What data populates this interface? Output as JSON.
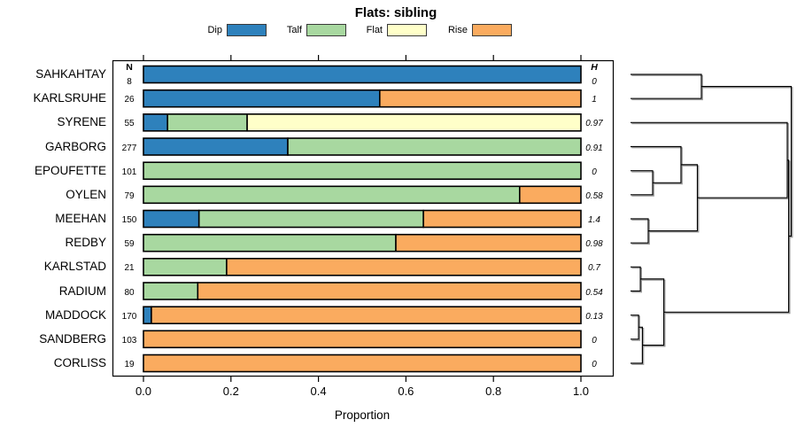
{
  "title": "Flats: sibling",
  "legend": {
    "items": [
      {
        "label": "Dip",
        "color": "#2E81BC"
      },
      {
        "label": "Talf",
        "color": "#A8D8A0"
      },
      {
        "label": "Flat",
        "color": "#FFFFC9"
      },
      {
        "label": "Rise",
        "color": "#FAAB5F"
      }
    ]
  },
  "columns": {
    "n_header": "N",
    "h_header": "H"
  },
  "xlabel": "Proportion",
  "chart_data": {
    "type": "bar",
    "orientation": "horizontal",
    "stacked": true,
    "title": "Flats: sibling",
    "xlabel": "Proportion",
    "xlim": [
      0,
      1
    ],
    "grid": false,
    "legend_position": "top",
    "x_tick_labels": [
      "0.0",
      "0.2",
      "0.4",
      "0.6",
      "0.8",
      "1.0"
    ],
    "categories": [
      "SAHKAHTAY",
      "KARLSRUHE",
      "SYRENE",
      "GARBORG",
      "EPOUFETTE",
      "OYLEN",
      "MEEHAN",
      "REDBY",
      "KARLSTAD",
      "RADIUM",
      "MADDOCK",
      "SANDBERG",
      "CORLISS"
    ],
    "n_values": [
      8,
      26,
      55,
      277,
      101,
      79,
      150,
      59,
      21,
      80,
      170,
      103,
      19
    ],
    "h_values": [
      "0",
      "1",
      "0.97",
      "0.91",
      "0",
      "0.58",
      "1.4",
      "0.98",
      "0.7",
      "0.54",
      "0.13",
      "0",
      "0"
    ],
    "series": [
      {
        "name": "Dip",
        "color": "#2E81BC",
        "values": [
          1,
          0.54,
          0.055,
          0.33,
          0,
          0,
          0.127,
          0,
          0,
          0,
          0.018,
          0,
          0
        ]
      },
      {
        "name": "Talf",
        "color": "#A8D8A0",
        "values": [
          0,
          0,
          0.182,
          0.67,
          1,
          0.86,
          0.513,
          0.577,
          0.19,
          0.124,
          0,
          0,
          0
        ]
      },
      {
        "name": "Flat",
        "color": "#FFFFC9",
        "values": [
          0,
          0,
          0.763,
          0,
          0,
          0,
          0,
          0,
          0,
          0,
          0,
          0,
          0
        ]
      },
      {
        "name": "Rise",
        "color": "#FAAB5F",
        "values": [
          0,
          0.46,
          0,
          0,
          0,
          0.14,
          0.36,
          0.423,
          0.81,
          0.876,
          0.982,
          1,
          1
        ]
      }
    ],
    "dendrogram": {
      "side": "right",
      "merges": [
        {
          "a": "L0",
          "b": "L1",
          "height": 0.441
        },
        {
          "a": "L4",
          "b": "L5",
          "height": 0.138
        },
        {
          "a": "L3",
          "b": "M1",
          "height": 0.314
        },
        {
          "a": "L6",
          "b": "L7",
          "height": 0.11
        },
        {
          "a": "M2",
          "b": "M3",
          "height": 0.416
        },
        {
          "a": "L2",
          "b": "M4",
          "height": 0.975
        },
        {
          "a": "L8",
          "b": "L9",
          "height": 0.061
        },
        {
          "a": "L10",
          "b": "L11",
          "height": 0.05
        },
        {
          "a": "M7",
          "b": "L12",
          "height": 0.074
        },
        {
          "a": "M6",
          "b": "M8",
          "height": 0.207
        },
        {
          "a": "M5",
          "b": "M9",
          "height": 0.984
        },
        {
          "a": "M0",
          "b": "M10",
          "height": 1.0
        }
      ]
    }
  }
}
